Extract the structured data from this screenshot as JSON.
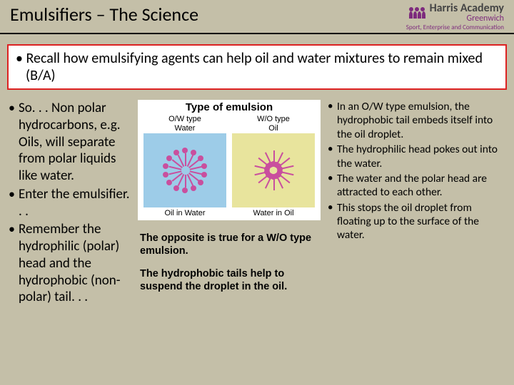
{
  "title": "Emulsifiers – The Science",
  "logo": {
    "name": "Harris Academy",
    "sub": "Greenwich",
    "tag": "Sport, Enterprise and Communication"
  },
  "callout": "• Recall how emulsifying agents can help oil and water mixtures to remain mixed (B/A)",
  "left": [
    "So. . . Non polar hydrocarbons, e.g. Oils, will separate from polar liquids like water.",
    "Enter the emulsifier. . .",
    "Remember the hydrophilic (polar) head and the hydrophobic (non-polar) tail. . ."
  ],
  "right": [
    "In an O/W type emulsion, the hydrophobic tail embeds itself into the oil droplet.",
    "The hydrophilic head pokes out into the water.",
    "The water and the polar head are attracted to each other.",
    "This stops the oil droplet from floating up to the surface of the water."
  ],
  "diagram": {
    "title": "Type of emulsion",
    "ow": {
      "type": "O/W type",
      "medium": "Water",
      "caption": "Oil in Water",
      "bg": "#9dcce8",
      "heads_out": true
    },
    "wo": {
      "type": "W/O type",
      "medium": "Oil",
      "caption": "Water in Oil",
      "bg": "#e8e49d",
      "heads_out": false
    },
    "colors": {
      "micelle": "#c94f9e"
    }
  },
  "mid1": "The opposite is true for a W/O type emulsion.",
  "mid2": "The hydrophobic tails help to suspend the droplet in the oil."
}
